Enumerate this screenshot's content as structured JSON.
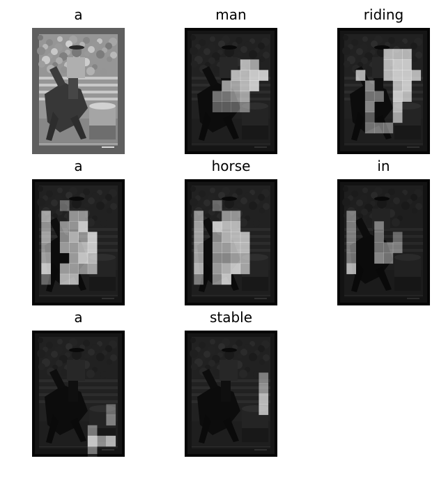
{
  "panels": [
    {
      "word": "a",
      "map": null,
      "base": 1.0
    },
    {
      "word": "man",
      "base": 0.22,
      "map": [
        "..........",
        "..........",
        "..........",
        "......87..",
        ".....8899.",
        "....7789..",
        "...5567...",
        "...4445...",
        "..........",
        "..........",
        "..........",
        ".........."
      ]
    },
    {
      "word": "riding",
      "base": 0.22,
      "map": [
        "..........",
        "..........",
        ".....888..",
        ".....899..",
        "..8..8998.",
        "...6..89..",
        "...55.98..",
        "...6..8...",
        "...4..7...",
        "...555....",
        "..........",
        ".........."
      ]
    },
    {
      "word": "a",
      "base": 0.22,
      "map": [
        "..........",
        "..........",
        "...4......",
        ".7..66....",
        ".6.669....",
        ".7.6869...",
        ".6.7789...",
        ".7..798...",
        ".9.7767...",
        ".4.88.....",
        "..........",
        ".........."
      ]
    },
    {
      "word": "horse",
      "base": 0.22,
      "map": [
        "..........",
        "..........",
        "...4......",
        ".6..66....",
        ".7.988....",
        ".7.6888...",
        ".7.7788...",
        ".7.6677...",
        ".8.7897...",
        ".5.69.....",
        "..........",
        ".........."
      ]
    },
    {
      "word": "in",
      "base": 0.2,
      "map": [
        "..........",
        "..........",
        "..........",
        ".5........",
        ".5..5.....",
        ".5..5.4...",
        ".5..555...",
        ".5..65....",
        ".8........",
        "..........",
        "..........",
        ".........."
      ]
    },
    {
      "word": "a",
      "base": 0.22,
      "map": [
        "..........",
        "..........",
        "..........",
        "..........",
        "..........",
        "..........",
        "..........",
        "........4.",
        "........5.",
        "......5...",
        "......968.",
        "......5..."
      ]
    },
    {
      "word": "stable",
      "base": 0.22,
      "map": [
        "..........",
        "..........",
        "..........",
        "..........",
        "........5.",
        "........6.",
        "........8.",
        "........8.",
        "..........",
        "..........",
        "..........",
        ".........."
      ]
    }
  ]
}
